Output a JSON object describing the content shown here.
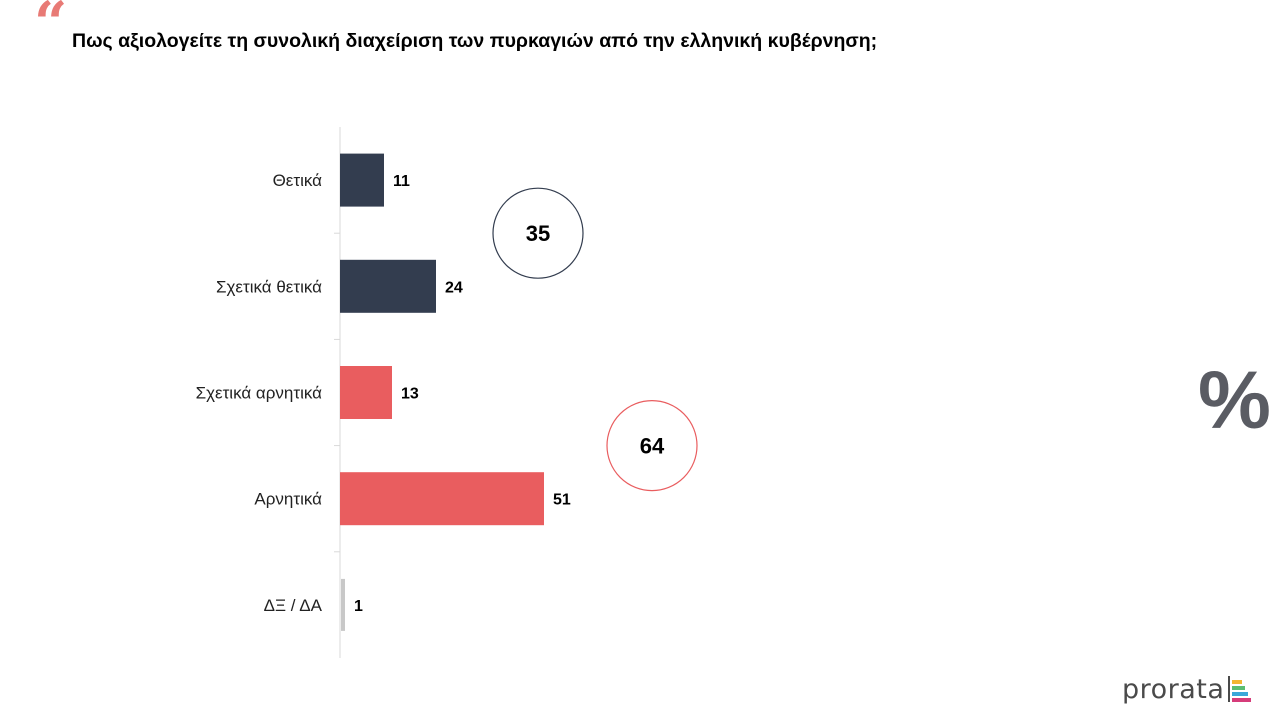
{
  "header": {
    "quote_glyph": "“",
    "title": "Πως αξιολογείτε τη συνολική διαχείριση των πυρκαγιών από την ελληνική κυβέρνηση;"
  },
  "unit_symbol": "%",
  "brand": {
    "name": "prorata"
  },
  "colors": {
    "positive": "#333d4f",
    "negative": "#e95d5f",
    "no_answer": "#c8c8c8",
    "axis": "#d9d9d9",
    "positive_circle": "#333d4f",
    "negative_circle": "#e95d5f"
  },
  "chart_data": {
    "type": "bar",
    "orientation": "horizontal",
    "title": "Πως αξιολογείτε τη συνολική διαχείριση των πυρκαγιών από την ελληνική κυβέρνηση;",
    "unit": "%",
    "categories": [
      "Θετικά",
      "Σχετικά θετικά",
      "Σχετικά αρνητικά",
      "Αρνητικά",
      "ΔΞ / ΔΑ"
    ],
    "values": [
      11,
      24,
      13,
      51,
      1
    ],
    "groups": [
      "positive",
      "positive",
      "negative",
      "negative",
      "no_answer"
    ],
    "totals": [
      {
        "label": "35",
        "group": "positive",
        "value": 35
      },
      {
        "label": "64",
        "group": "negative",
        "value": 64
      }
    ],
    "xlim": [
      0,
      100
    ],
    "grid": false,
    "legend": "none"
  }
}
